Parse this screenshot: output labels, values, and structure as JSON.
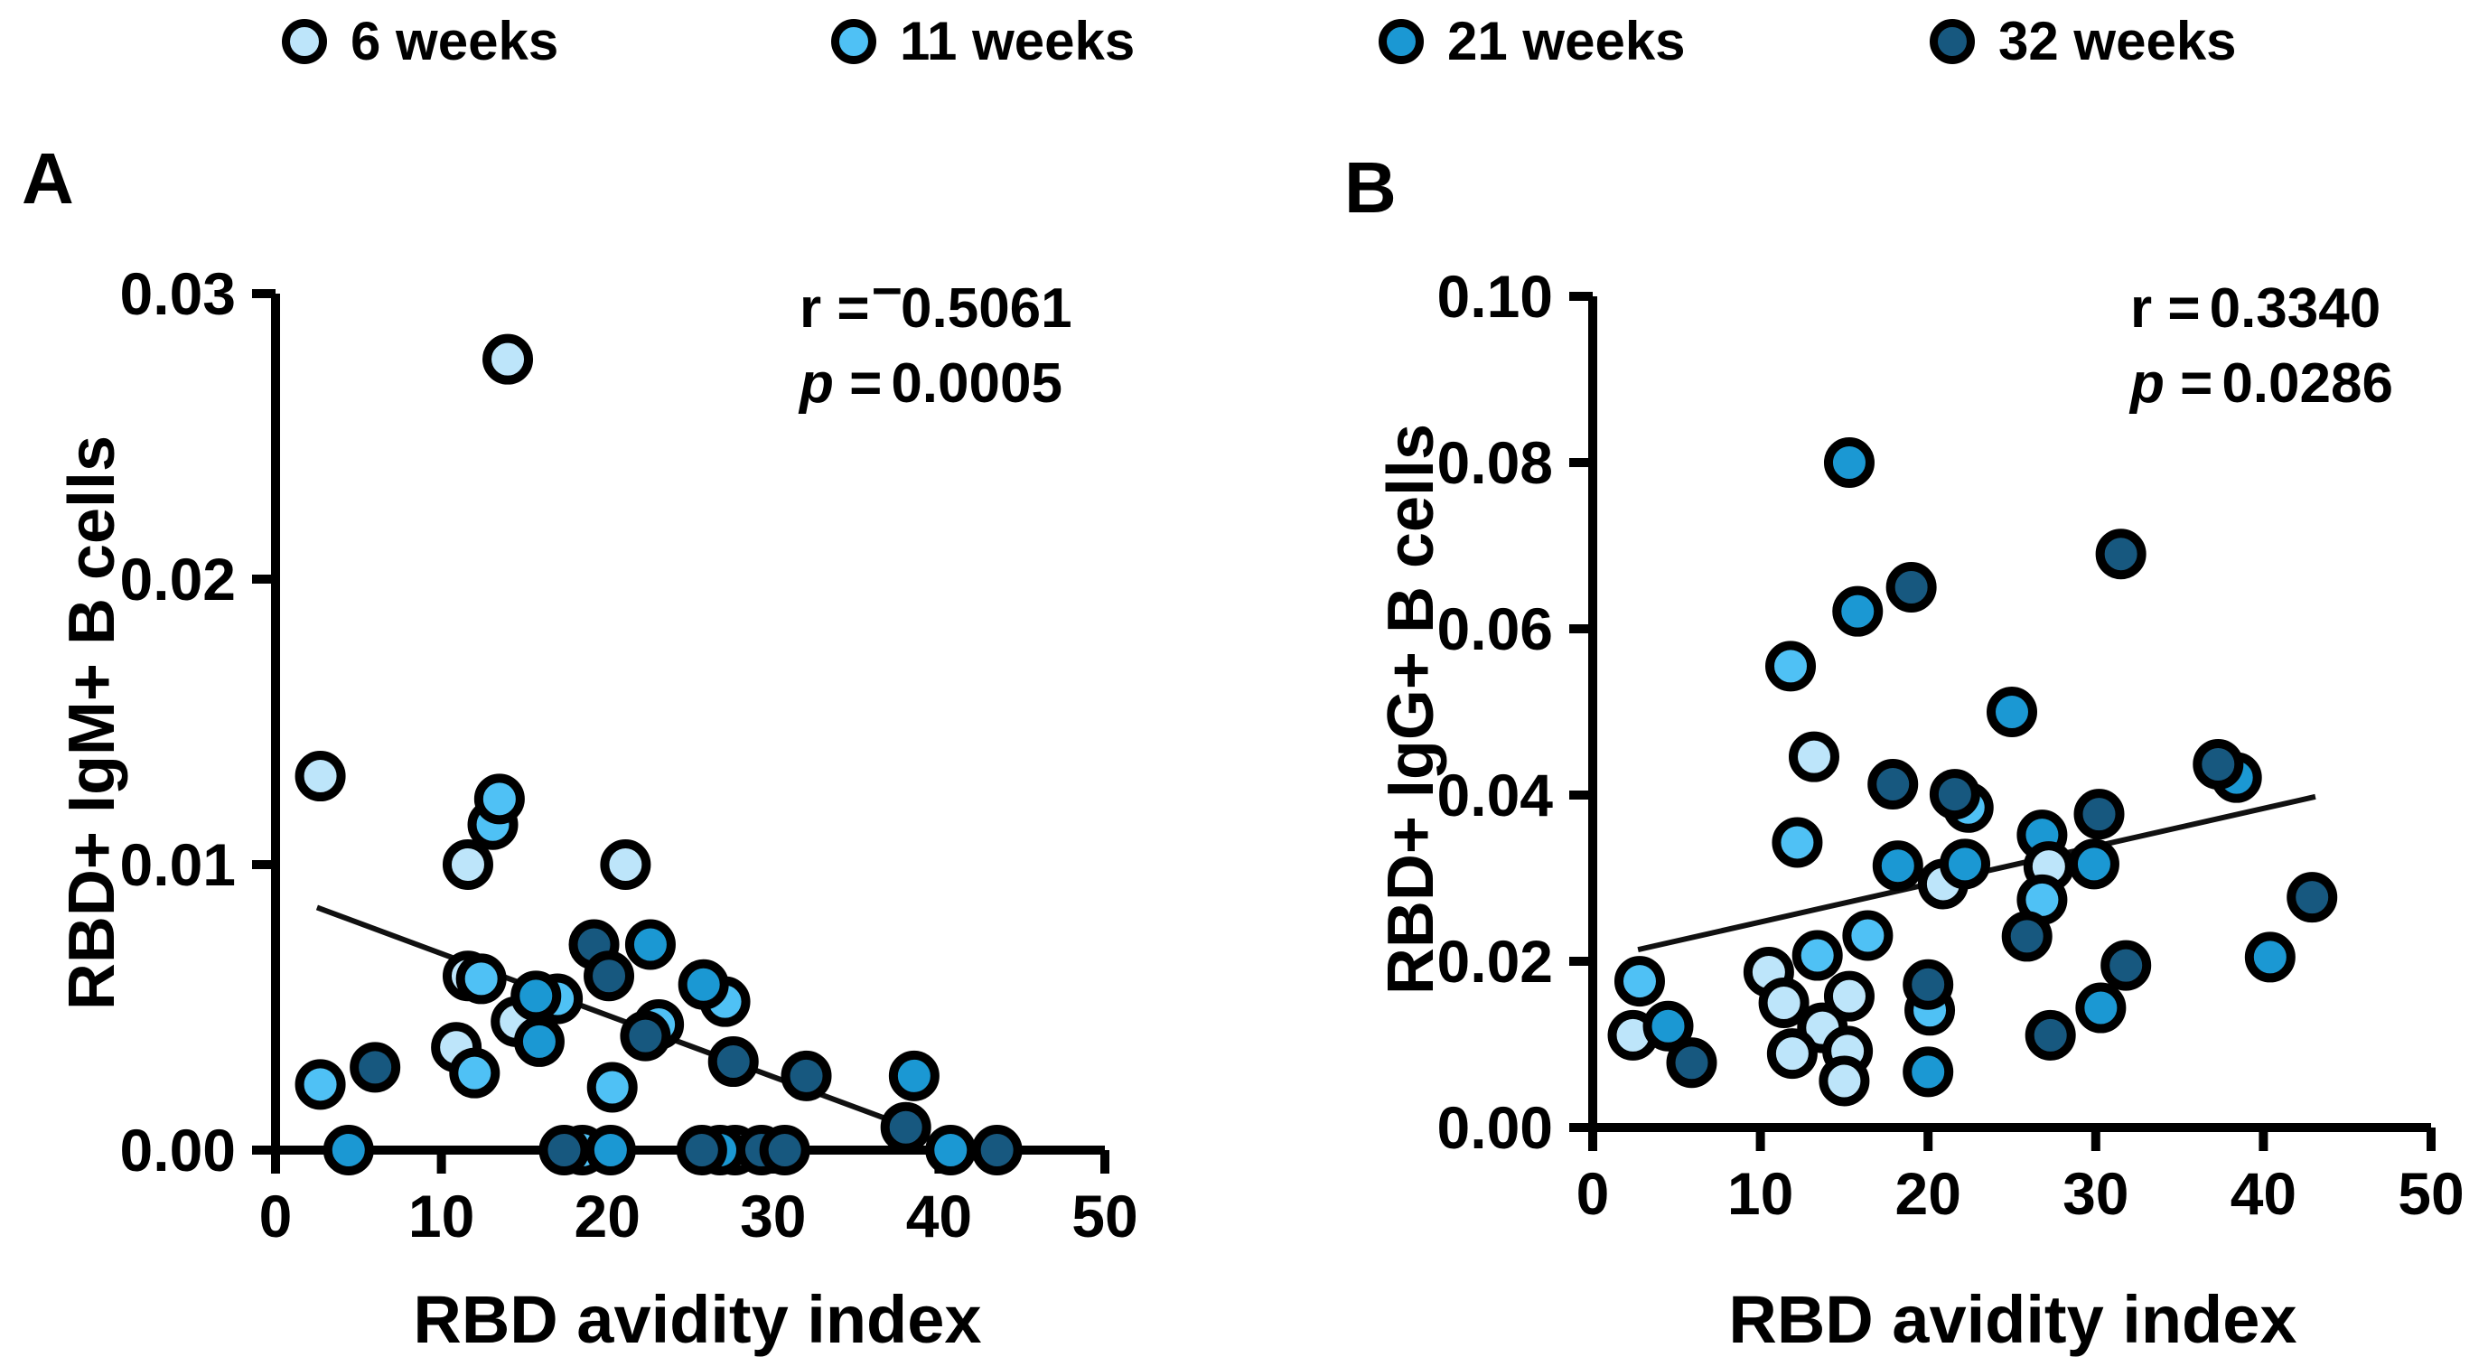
{
  "legend": {
    "items": [
      {
        "label": "6 weeks",
        "color": "#BDE5FA"
      },
      {
        "label": "11 weeks",
        "color": "#4FC1F5"
      },
      {
        "label": "21 weeks",
        "color": "#1B98D3"
      },
      {
        "label": "32 weeks",
        "color": "#17587F"
      }
    ]
  },
  "styles": {
    "marker_stroke": "#000000",
    "axis_color": "#000000",
    "background": "#FFFFFF"
  },
  "chart_data": [
    {
      "type": "scatter",
      "panel_label": "A",
      "xlabel": "RBD avidity index",
      "ylabel": "RBD+ IgM+ B cells",
      "xlim": [
        0,
        50
      ],
      "ylim": [
        0,
        0.03
      ],
      "xticks": [
        0,
        10,
        20,
        30,
        40,
        50
      ],
      "yticks": [
        "0.00",
        "0.01",
        "0.02",
        "0.03"
      ],
      "grid": false,
      "legend_position": "top",
      "annotation": {
        "r_label": "r",
        "r_eq": "=",
        "r_sign": "−",
        "r_value": "0.5061",
        "p_label": "p",
        "p_eq": "=",
        "p_value": "0.0005"
      },
      "trendline": {
        "x1": 2.5,
        "y1": 0.0085,
        "x2": 38.2,
        "y2": 0.0008
      },
      "points": [
        {
          "x": 14.0,
          "y": 0.0277,
          "g": "6 weeks"
        },
        {
          "x": 2.7,
          "y": 0.0131,
          "g": "6 weeks"
        },
        {
          "x": 13.1,
          "y": 0.0114,
          "g": "11 weeks"
        },
        {
          "x": 13.5,
          "y": 0.0123,
          "g": "11 weeks"
        },
        {
          "x": 11.6,
          "y": 0.01,
          "g": "6 weeks"
        },
        {
          "x": 21.1,
          "y": 0.01,
          "g": "6 weeks"
        },
        {
          "x": 19.2,
          "y": 0.0072,
          "g": "32 weeks"
        },
        {
          "x": 22.6,
          "y": 0.0072,
          "g": "21 weeks"
        },
        {
          "x": 20.1,
          "y": 0.0061,
          "g": "32 weeks"
        },
        {
          "x": 27.1,
          "y": 0.0052,
          "g": "11 weeks"
        },
        {
          "x": 25.8,
          "y": 0.0058,
          "g": "21 weeks"
        },
        {
          "x": 11.6,
          "y": 0.0061,
          "g": "6 weeks"
        },
        {
          "x": 12.4,
          "y": 0.006,
          "g": "11 weeks"
        },
        {
          "x": 17.0,
          "y": 0.0053,
          "g": "11 weeks"
        },
        {
          "x": 14.5,
          "y": 0.0045,
          "g": "6 weeks"
        },
        {
          "x": 15.7,
          "y": 0.0054,
          "g": "21 weeks"
        },
        {
          "x": 15.9,
          "y": 0.0038,
          "g": "21 weeks"
        },
        {
          "x": 23.1,
          "y": 0.0044,
          "g": "11 weeks"
        },
        {
          "x": 22.3,
          "y": 0.004,
          "g": "32 weeks"
        },
        {
          "x": 10.9,
          "y": 0.0036,
          "g": "6 weeks"
        },
        {
          "x": 12.0,
          "y": 0.0027,
          "g": "11 weeks"
        },
        {
          "x": 2.7,
          "y": 0.0023,
          "g": "11 weeks"
        },
        {
          "x": 6.0,
          "y": 0.0029,
          "g": "32 weeks"
        },
        {
          "x": 20.3,
          "y": 0.0022,
          "g": "11 weeks"
        },
        {
          "x": 27.6,
          "y": 0.0031,
          "g": "32 weeks"
        },
        {
          "x": 32.0,
          "y": 0.0026,
          "g": "32 weeks"
        },
        {
          "x": 38.5,
          "y": 0.0026,
          "g": "21 weeks"
        },
        {
          "x": 38.0,
          "y": 0.0008,
          "g": "32 weeks"
        },
        {
          "x": 4.4,
          "y": 0.0,
          "g": "21 weeks"
        },
        {
          "x": 18.5,
          "y": 0.0,
          "g": "11 weeks"
        },
        {
          "x": 17.4,
          "y": 0.0,
          "g": "32 weeks"
        },
        {
          "x": 20.2,
          "y": 0.0,
          "g": "21 weeks"
        },
        {
          "x": 27.7,
          "y": 0.0,
          "g": "6 weeks"
        },
        {
          "x": 26.8,
          "y": 0.0,
          "g": "21 weeks"
        },
        {
          "x": 25.7,
          "y": 0.0,
          "g": "32 weeks"
        },
        {
          "x": 29.3,
          "y": 0.0,
          "g": "32 weeks"
        },
        {
          "x": 30.7,
          "y": 0.0,
          "g": "32 weeks"
        },
        {
          "x": 40.7,
          "y": 0.0,
          "g": "21 weeks"
        },
        {
          "x": 43.5,
          "y": 0.0,
          "g": "32 weeks"
        }
      ]
    },
    {
      "type": "scatter",
      "panel_label": "B",
      "xlabel": "RBD avidity index",
      "ylabel": "RBD+ IgG+ B cells",
      "xlim": [
        0,
        50
      ],
      "ylim": [
        0,
        0.1
      ],
      "xticks": [
        0,
        10,
        20,
        30,
        40,
        50
      ],
      "yticks": [
        "0.00",
        "0.02",
        "0.04",
        "0.06",
        "0.08",
        "0.10"
      ],
      "grid": false,
      "legend_position": "top",
      "annotation": {
        "r_label": "r",
        "r_eq": "=",
        "r_sign": "",
        "r_value": "0.3340",
        "p_label": "p",
        "p_eq": "=",
        "p_value": "0.0286"
      },
      "trendline": {
        "x1": 2.7,
        "y1": 0.0214,
        "x2": 43.1,
        "y2": 0.0398
      },
      "points": [
        {
          "x": 15.3,
          "y": 0.08,
          "g": "21 weeks"
        },
        {
          "x": 31.5,
          "y": 0.069,
          "g": "32 weeks"
        },
        {
          "x": 19.0,
          "y": 0.065,
          "g": "32 weeks"
        },
        {
          "x": 15.8,
          "y": 0.0621,
          "g": "21 weeks"
        },
        {
          "x": 11.8,
          "y": 0.0555,
          "g": "11 weeks"
        },
        {
          "x": 25.0,
          "y": 0.05,
          "g": "21 weeks"
        },
        {
          "x": 13.2,
          "y": 0.0446,
          "g": "6 weeks"
        },
        {
          "x": 17.9,
          "y": 0.0413,
          "g": "32 weeks"
        },
        {
          "x": 22.4,
          "y": 0.0385,
          "g": "11 weeks"
        },
        {
          "x": 21.6,
          "y": 0.0401,
          "g": "32 weeks"
        },
        {
          "x": 38.4,
          "y": 0.0421,
          "g": "21 weeks"
        },
        {
          "x": 37.3,
          "y": 0.0437,
          "g": "32 weeks"
        },
        {
          "x": 12.2,
          "y": 0.0343,
          "g": "11 weeks"
        },
        {
          "x": 30.2,
          "y": 0.0377,
          "g": "32 weeks"
        },
        {
          "x": 26.8,
          "y": 0.0352,
          "g": "21 weeks"
        },
        {
          "x": 20.9,
          "y": 0.0293,
          "g": "6 weeks"
        },
        {
          "x": 18.2,
          "y": 0.0315,
          "g": "21 weeks"
        },
        {
          "x": 22.2,
          "y": 0.0317,
          "g": "21 weeks"
        },
        {
          "x": 27.2,
          "y": 0.0314,
          "g": "6 weeks"
        },
        {
          "x": 29.9,
          "y": 0.0317,
          "g": "21 weeks"
        },
        {
          "x": 26.8,
          "y": 0.0274,
          "g": "11 weeks"
        },
        {
          "x": 25.9,
          "y": 0.023,
          "g": "32 weeks"
        },
        {
          "x": 16.4,
          "y": 0.0231,
          "g": "11 weeks"
        },
        {
          "x": 31.8,
          "y": 0.0195,
          "g": "32 weeks"
        },
        {
          "x": 40.4,
          "y": 0.0205,
          "g": "21 weeks"
        },
        {
          "x": 42.9,
          "y": 0.0277,
          "g": "32 weeks"
        },
        {
          "x": 2.8,
          "y": 0.0176,
          "g": "11 weeks"
        },
        {
          "x": 2.4,
          "y": 0.0111,
          "g": "6 weeks"
        },
        {
          "x": 4.5,
          "y": 0.0122,
          "g": "21 weeks"
        },
        {
          "x": 5.9,
          "y": 0.0078,
          "g": "32 weeks"
        },
        {
          "x": 10.5,
          "y": 0.0187,
          "g": "6 weeks"
        },
        {
          "x": 13.4,
          "y": 0.0207,
          "g": "11 weeks"
        },
        {
          "x": 11.4,
          "y": 0.015,
          "g": "6 weeks"
        },
        {
          "x": 15.3,
          "y": 0.0158,
          "g": "6 weeks"
        },
        {
          "x": 13.7,
          "y": 0.012,
          "g": "6 weeks"
        },
        {
          "x": 11.9,
          "y": 0.0089,
          "g": "6 weeks"
        },
        {
          "x": 15.2,
          "y": 0.0092,
          "g": "6 weeks"
        },
        {
          "x": 15.0,
          "y": 0.0056,
          "g": "6 weeks"
        },
        {
          "x": 20.1,
          "y": 0.0141,
          "g": "11 weeks"
        },
        {
          "x": 20.0,
          "y": 0.0172,
          "g": "32 weeks"
        },
        {
          "x": 20.0,
          "y": 0.0067,
          "g": "21 weeks"
        },
        {
          "x": 27.3,
          "y": 0.0111,
          "g": "32 weeks"
        },
        {
          "x": 30.3,
          "y": 0.0144,
          "g": "21 weeks"
        }
      ]
    }
  ]
}
